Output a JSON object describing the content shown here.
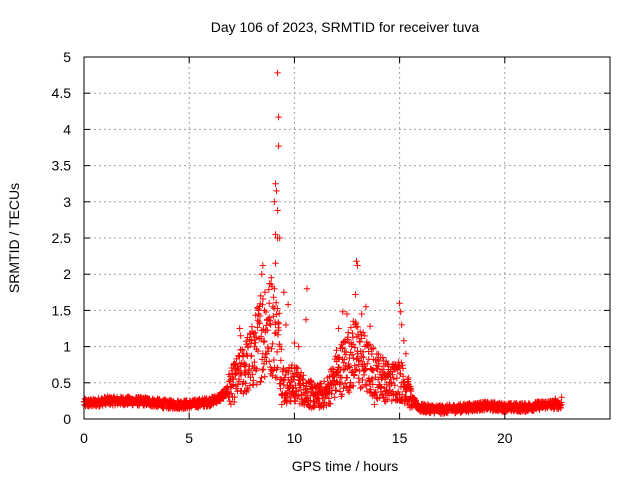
{
  "chart_data": {
    "type": "scatter",
    "title": "Day 106 of 2023, SRMTID for receiver tuva",
    "xlabel": "GPS time / hours",
    "ylabel": "SRMTID / TECUs",
    "xlim": [
      0,
      25
    ],
    "ylim": [
      0,
      5
    ],
    "xticks": [
      0,
      5,
      10,
      15,
      20
    ],
    "yticks": [
      0,
      0.5,
      1,
      1.5,
      2,
      2.5,
      3,
      3.5,
      4,
      4.5,
      5
    ],
    "grid": true,
    "marker": "+",
    "color": "#ff0000",
    "series": [
      {
        "name": "tuva",
        "baseline_profile": [
          [
            0.0,
            0.22
          ],
          [
            0.5,
            0.22
          ],
          [
            1.0,
            0.25
          ],
          [
            2.0,
            0.25
          ],
          [
            3.0,
            0.24
          ],
          [
            4.0,
            0.2
          ],
          [
            5.0,
            0.2
          ],
          [
            5.5,
            0.22
          ],
          [
            6.0,
            0.24
          ],
          [
            6.5,
            0.3
          ],
          [
            7.0,
            0.45
          ],
          [
            7.5,
            0.65
          ],
          [
            8.0,
            0.85
          ],
          [
            8.5,
            1.2
          ],
          [
            9.0,
            1.3
          ],
          [
            9.3,
            1.0
          ],
          [
            9.5,
            0.45
          ],
          [
            10.0,
            0.5
          ],
          [
            10.5,
            0.4
          ],
          [
            11.0,
            0.3
          ],
          [
            11.5,
            0.35
          ],
          [
            12.0,
            0.6
          ],
          [
            12.5,
            0.8
          ],
          [
            13.0,
            0.9
          ],
          [
            13.5,
            0.7
          ],
          [
            14.0,
            0.6
          ],
          [
            14.5,
            0.5
          ],
          [
            15.0,
            0.55
          ],
          [
            15.3,
            0.45
          ],
          [
            15.6,
            0.25
          ],
          [
            16.0,
            0.15
          ],
          [
            17.0,
            0.13
          ],
          [
            18.0,
            0.15
          ],
          [
            19.0,
            0.18
          ],
          [
            20.0,
            0.16
          ],
          [
            21.0,
            0.16
          ],
          [
            22.0,
            0.2
          ],
          [
            22.7,
            0.2
          ]
        ],
        "points": [
          [
            9.2,
            4.78
          ],
          [
            9.25,
            4.17
          ],
          [
            9.25,
            3.77
          ],
          [
            9.1,
            3.25
          ],
          [
            9.15,
            3.15
          ],
          [
            9.05,
            3.0
          ],
          [
            9.2,
            2.88
          ],
          [
            9.1,
            2.55
          ],
          [
            9.2,
            2.5
          ],
          [
            9.3,
            2.5
          ],
          [
            8.5,
            2.12
          ],
          [
            8.45,
            2.0
          ],
          [
            9.1,
            2.15
          ],
          [
            8.9,
            1.95
          ],
          [
            8.6,
            1.75
          ],
          [
            8.4,
            1.7
          ],
          [
            8.8,
            1.6
          ],
          [
            7.4,
            1.25
          ],
          [
            7.45,
            1.15
          ],
          [
            9.7,
            1.58
          ],
          [
            9.5,
            1.75
          ],
          [
            9.6,
            1.3
          ],
          [
            10.6,
            1.8
          ],
          [
            10.55,
            1.37
          ],
          [
            10.0,
            1.05
          ],
          [
            10.2,
            1.0
          ],
          [
            9.4,
            0.2
          ],
          [
            9.8,
            0.25
          ],
          [
            10.0,
            0.25
          ],
          [
            12.95,
            2.18
          ],
          [
            13.0,
            2.12
          ],
          [
            12.9,
            1.72
          ],
          [
            12.3,
            1.48
          ],
          [
            12.5,
            1.45
          ],
          [
            12.1,
            1.25
          ],
          [
            12.8,
            1.35
          ],
          [
            13.2,
            1.45
          ],
          [
            13.4,
            1.55
          ],
          [
            13.6,
            1.28
          ],
          [
            12.6,
            1.05
          ],
          [
            12.0,
            0.95
          ],
          [
            14.0,
            0.8
          ],
          [
            14.2,
            0.85
          ],
          [
            13.8,
            0.2
          ],
          [
            14.35,
            0.35
          ],
          [
            15.0,
            1.6
          ],
          [
            15.05,
            1.48
          ],
          [
            15.1,
            1.3
          ],
          [
            15.2,
            1.08
          ],
          [
            15.3,
            0.9
          ],
          [
            14.8,
            0.75
          ],
          [
            11.2,
            0.45
          ],
          [
            11.5,
            0.3
          ],
          [
            10.8,
            0.15
          ],
          [
            6.6,
            0.38
          ],
          [
            7.1,
            0.55
          ],
          [
            7.2,
            0.75
          ],
          [
            7.6,
            0.9
          ],
          [
            7.8,
            0.4
          ],
          [
            8.1,
            1.0
          ],
          [
            8.3,
            1.45
          ],
          [
            16.3,
            0.12
          ],
          [
            17.2,
            0.1
          ],
          [
            18.6,
            0.13
          ],
          [
            19.5,
            0.23
          ],
          [
            20.3,
            0.12
          ],
          [
            21.4,
            0.2
          ],
          [
            22.4,
            0.28
          ],
          [
            22.7,
            0.3
          ]
        ]
      }
    ]
  }
}
